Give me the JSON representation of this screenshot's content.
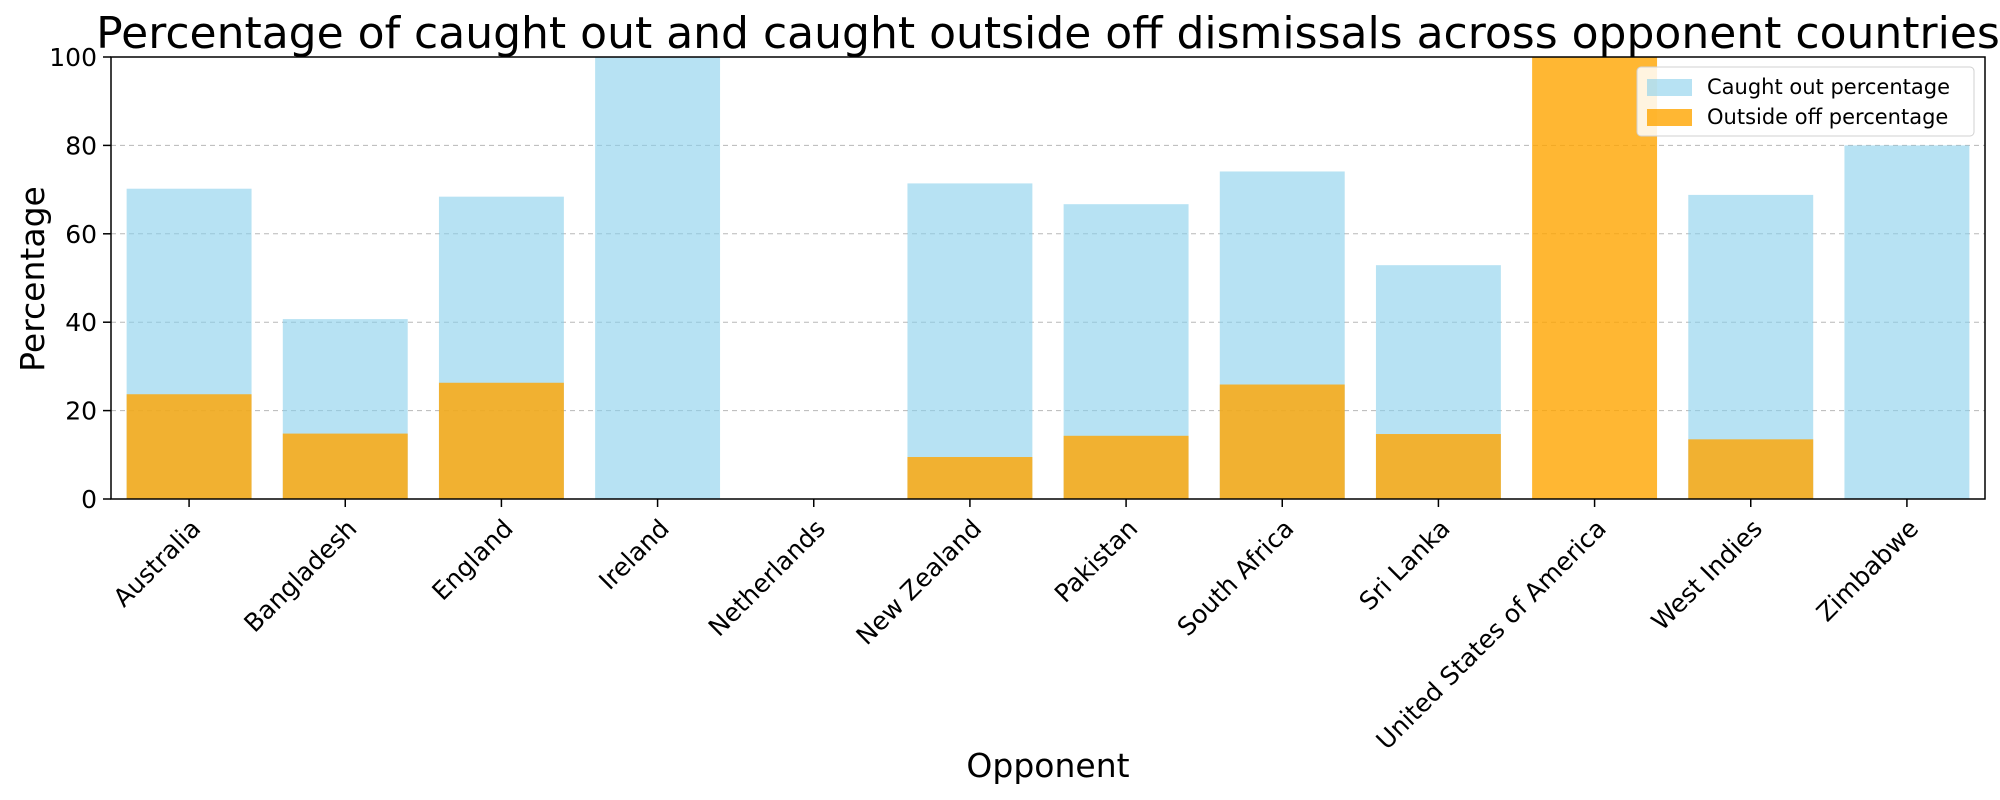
{
  "chart_data": {
    "type": "bar",
    "title": "Percentage of caught out and caught outside off dismissals across opponent countries",
    "xlabel": "Opponent",
    "ylabel": "Percentage",
    "ylim": [
      0,
      100
    ],
    "yticks": [
      0,
      20,
      40,
      60,
      80,
      100
    ],
    "grid": "y-dashed",
    "legend_position": "top-right",
    "categories": [
      "Australia",
      "Bangladesh",
      "England",
      "Ireland",
      "Netherlands",
      "New Zealand",
      "Pakistan",
      "South Africa",
      "Sri Lanka",
      "United States of America",
      "West Indies",
      "Zimbabwe"
    ],
    "series": [
      {
        "name": "Caught out percentage",
        "color": "#87ceeb",
        "opacity": 0.6,
        "values": [
          70.2,
          40.7,
          68.4,
          100,
          0,
          71.4,
          66.7,
          74.1,
          52.9,
          0,
          68.8,
          80
        ]
      },
      {
        "name": "Outside off percentage",
        "color": "#ffa500",
        "opacity": 0.8,
        "values": [
          23.7,
          14.8,
          26.3,
          0,
          0,
          9.5,
          14.3,
          25.9,
          14.7,
          100,
          13.5,
          0
        ]
      }
    ]
  }
}
